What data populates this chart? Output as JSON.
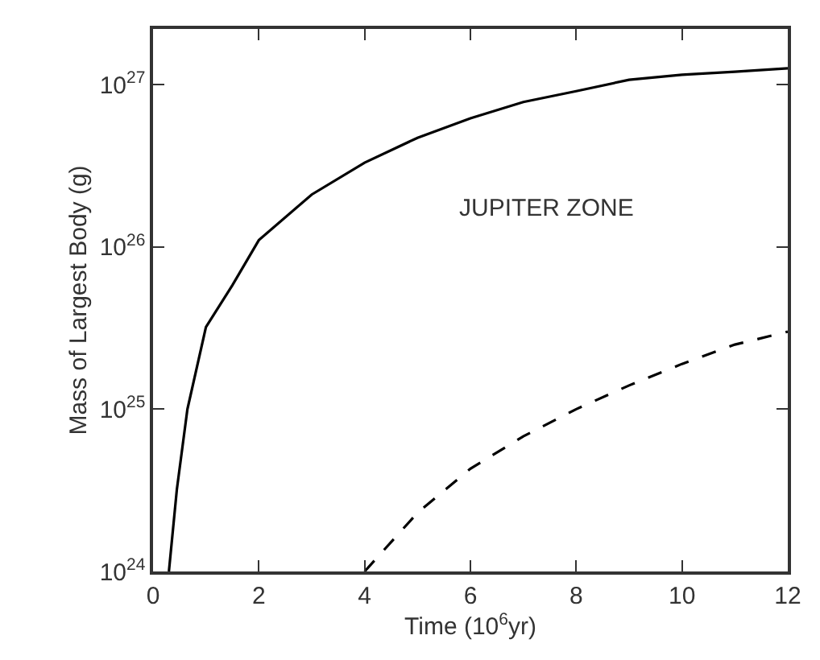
{
  "chart_data": {
    "type": "line",
    "xlabel": "Time (10$^{6}$yr)",
    "ylabel": "Mass of Largest Body (g)",
    "annotations": [
      "JUPITER ZONE"
    ],
    "log": "y",
    "marker": "none",
    "xlim": [
      0,
      12
    ],
    "xticks": [
      0,
      2,
      4,
      6,
      8,
      10,
      12
    ],
    "ylim": [
      1e+24,
      2.2e+27
    ],
    "yticks": [
      {
        "value": 1e+24,
        "label": "10$^{24}$"
      },
      {
        "value": 1e+25,
        "label": "10$^{25}$"
      },
      {
        "value": 1e+26,
        "label": "10$^{26}$"
      },
      {
        "value": 1e+27,
        "label": "10$^{27}$"
      }
    ],
    "series": [
      {
        "color": "#000000",
        "line_style": "solid",
        "x": [
          0.3,
          0.45,
          0.65,
          1.0,
          1.5,
          2,
          3,
          4,
          5,
          6,
          7,
          8,
          9,
          10,
          11,
          12
        ],
        "values": [
          1e+24,
          3.2e+24,
          1e+25,
          3.2e+25,
          5.8e+25,
          1.1e+26,
          2.1e+26,
          3.3e+26,
          4.7e+26,
          6.2e+26,
          7.8e+26,
          9.1e+26,
          1.07e+27,
          1.15e+27,
          1.2e+27,
          1.26e+27
        ]
      },
      {
        "color": "#000000",
        "line_style": "dashed",
        "x": [
          4,
          5,
          6,
          7,
          8,
          9,
          10,
          11,
          12
        ],
        "values": [
          1e+24,
          2.3e+24,
          4.3e+24,
          6.8e+24,
          1e+25,
          1.4e+25,
          1.9e+25,
          2.5e+25,
          3e+25
        ]
      }
    ]
  }
}
